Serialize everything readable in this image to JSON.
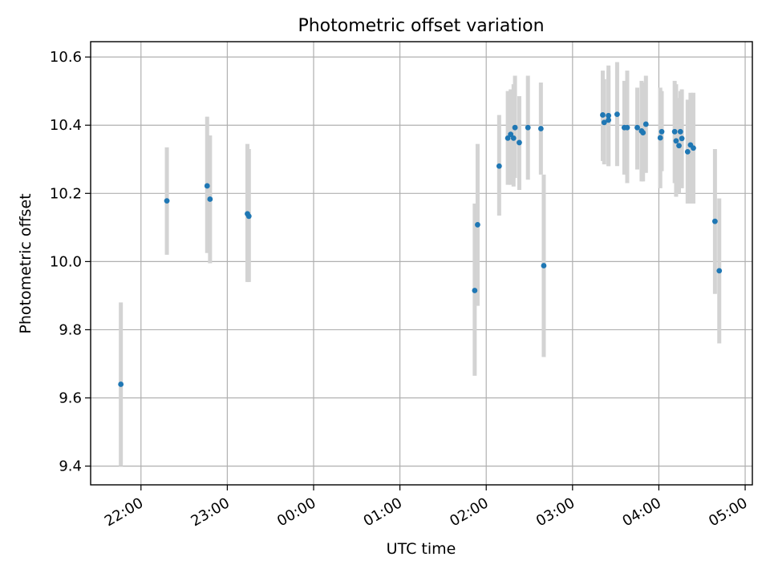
{
  "chart_data": {
    "type": "scatter",
    "title": "Photometric offset variation",
    "xlabel": "UTC time",
    "ylabel": "Photometric offset",
    "grid": true,
    "colors": {
      "points": "#1f77b4",
      "errorbars": "#d3d3d3",
      "grid": "#b0b0b0"
    },
    "xlim": [
      "21:25",
      "05:05"
    ],
    "ylim": [
      9.345,
      10.645
    ],
    "xticks": [
      "22:00",
      "23:00",
      "00:00",
      "01:00",
      "02:00",
      "03:00",
      "04:00",
      "05:00"
    ],
    "yticks": [
      "9.4",
      "9.6",
      "9.8",
      "10.0",
      "10.2",
      "10.4",
      "10.6"
    ],
    "points": [
      {
        "t": "21:46",
        "y": 9.64,
        "lo": 9.4,
        "hi": 9.88
      },
      {
        "t": "22:18",
        "y": 10.178,
        "lo": 10.02,
        "hi": 10.335
      },
      {
        "t": "22:46",
        "y": 10.222,
        "lo": 10.025,
        "hi": 10.425
      },
      {
        "t": "22:48",
        "y": 10.183,
        "lo": 9.995,
        "hi": 10.37
      },
      {
        "t": "23:14",
        "y": 10.14,
        "lo": 9.94,
        "hi": 10.345
      },
      {
        "t": "23:15",
        "y": 10.133,
        "lo": 9.94,
        "hi": 10.33
      },
      {
        "t": "01:52",
        "y": 9.915,
        "lo": 9.665,
        "hi": 10.17
      },
      {
        "t": "01:54",
        "y": 10.108,
        "lo": 9.87,
        "hi": 10.345
      },
      {
        "t": "02:09",
        "y": 10.28,
        "lo": 10.135,
        "hi": 10.43
      },
      {
        "t": "02:15",
        "y": 10.362,
        "lo": 10.225,
        "hi": 10.5
      },
      {
        "t": "02:17",
        "y": 10.373,
        "lo": 10.225,
        "hi": 10.505
      },
      {
        "t": "02:19",
        "y": 10.362,
        "lo": 10.22,
        "hi": 10.52
      },
      {
        "t": "02:20",
        "y": 10.393,
        "lo": 10.245,
        "hi": 10.545
      },
      {
        "t": "02:23",
        "y": 10.349,
        "lo": 10.21,
        "hi": 10.485
      },
      {
        "t": "02:29",
        "y": 10.393,
        "lo": 10.24,
        "hi": 10.545
      },
      {
        "t": "02:38",
        "y": 10.39,
        "lo": 10.255,
        "hi": 10.525
      },
      {
        "t": "02:40",
        "y": 9.988,
        "lo": 9.72,
        "hi": 10.255
      },
      {
        "t": "03:21",
        "y": 10.43,
        "lo": 10.295,
        "hi": 10.56
      },
      {
        "t": "03:22",
        "y": 10.408,
        "lo": 10.285,
        "hi": 10.535
      },
      {
        "t": "03:25",
        "y": 10.428,
        "lo": 10.28,
        "hi": 10.575
      },
      {
        "t": "03:25",
        "y": 10.415,
        "lo": 10.28,
        "hi": 10.56
      },
      {
        "t": "03:31",
        "y": 10.432,
        "lo": 10.28,
        "hi": 10.585
      },
      {
        "t": "03:36",
        "y": 10.393,
        "lo": 10.255,
        "hi": 10.53
      },
      {
        "t": "03:38",
        "y": 10.393,
        "lo": 10.23,
        "hi": 10.56
      },
      {
        "t": "03:45",
        "y": 10.393,
        "lo": 10.27,
        "hi": 10.51
      },
      {
        "t": "03:48",
        "y": 10.383,
        "lo": 10.235,
        "hi": 10.53
      },
      {
        "t": "03:49",
        "y": 10.378,
        "lo": 10.235,
        "hi": 10.525
      },
      {
        "t": "03:51",
        "y": 10.403,
        "lo": 10.26,
        "hi": 10.545
      },
      {
        "t": "04:01",
        "y": 10.363,
        "lo": 10.215,
        "hi": 10.51
      },
      {
        "t": "04:02",
        "y": 10.381,
        "lo": 10.265,
        "hi": 10.5
      },
      {
        "t": "04:11",
        "y": 10.381,
        "lo": 10.23,
        "hi": 10.53
      },
      {
        "t": "04:12",
        "y": 10.354,
        "lo": 10.19,
        "hi": 10.52
      },
      {
        "t": "04:14",
        "y": 10.34,
        "lo": 10.2,
        "hi": 10.48
      },
      {
        "t": "04:15",
        "y": 10.381,
        "lo": 10.22,
        "hi": 10.5
      },
      {
        "t": "04:16",
        "y": 10.361,
        "lo": 10.215,
        "hi": 10.505
      },
      {
        "t": "04:20",
        "y": 10.322,
        "lo": 10.17,
        "hi": 10.475
      },
      {
        "t": "04:22",
        "y": 10.342,
        "lo": 10.17,
        "hi": 10.495
      },
      {
        "t": "04:24",
        "y": 10.333,
        "lo": 10.17,
        "hi": 10.495
      },
      {
        "t": "04:39",
        "y": 10.118,
        "lo": 9.905,
        "hi": 10.33
      },
      {
        "t": "04:42",
        "y": 9.973,
        "lo": 9.76,
        "hi": 10.185
      }
    ]
  }
}
